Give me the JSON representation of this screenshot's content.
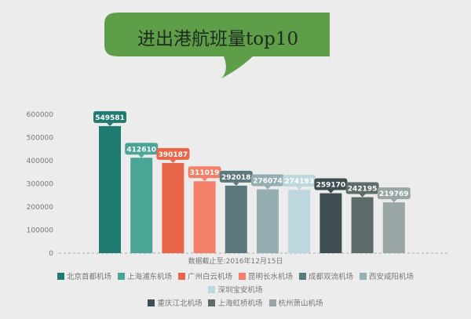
{
  "chart_data": {
    "type": "bar",
    "title": "进出港航班量top10",
    "note": "数据截止至:2016年12月15日",
    "categories": [
      "北京首都机场",
      "上海浦东机场",
      "广州白云机场",
      "昆明长水机场",
      "成都双流机场",
      "西安咸阳机场",
      "深圳宝安机场",
      "重庆江北机场",
      "上海虹桥机场",
      "杭州萧山机场"
    ],
    "values": [
      549581,
      412610,
      390187,
      311019,
      292018,
      276074,
      274193,
      259170,
      242195,
      219769
    ],
    "colors": [
      "#1f7b6f",
      "#4aa597",
      "#e8664a",
      "#f5806a",
      "#5b787c",
      "#94aeb2",
      "#bcd8de",
      "#3f4e52",
      "#5d6b6b",
      "#9aa6a6"
    ],
    "yticks": [
      0,
      100000,
      200000,
      300000,
      400000,
      500000,
      600000
    ],
    "ylim": [
      0,
      600000
    ],
    "grid": false,
    "legend": "bottom",
    "title_bg": "#5f9e48"
  }
}
